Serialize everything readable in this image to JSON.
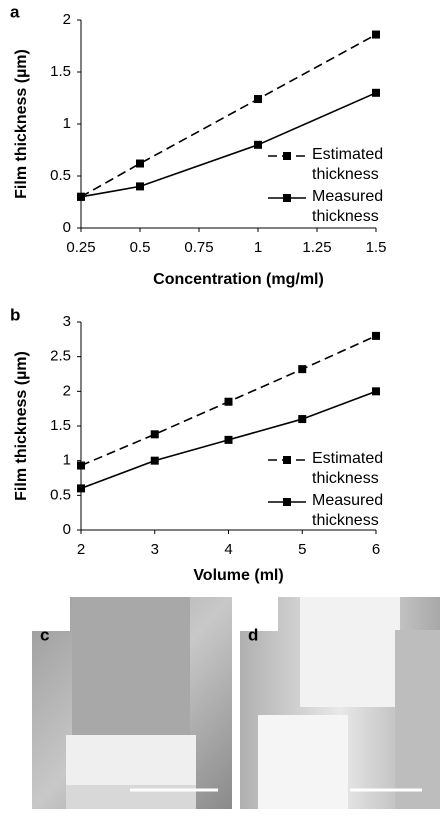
{
  "chart_data": [
    {
      "type": "line",
      "panel_label": "a",
      "xlabel": "Concentration (mg/ml)",
      "ylabel": "Film thickness (µm)",
      "x": [
        0.25,
        0.5,
        1,
        1.5
      ],
      "series": [
        {
          "name": "Estimated thickness",
          "color": "#000000",
          "dash": true,
          "values": [
            0.3,
            0.62,
            1.24,
            1.86
          ]
        },
        {
          "name": "Measured thickness",
          "color": "#000000",
          "dash": false,
          "values": [
            0.3,
            0.4,
            0.8,
            1.3
          ]
        }
      ],
      "xlim": [
        0.25,
        1.5
      ],
      "xticks": [
        0.25,
        0.5,
        0.75,
        1,
        1.25,
        1.5
      ],
      "ylim": [
        0,
        2
      ],
      "yticks": [
        0,
        0.5,
        1,
        1.5,
        2
      ],
      "legend": "lower right"
    },
    {
      "type": "line",
      "panel_label": "b",
      "xlabel": "Volume (ml)",
      "ylabel": "Film thickness (µm)",
      "x": [
        2,
        3,
        4,
        5,
        6
      ],
      "series": [
        {
          "name": "Estimated thickness",
          "color": "#000000",
          "dash": true,
          "values": [
            0.93,
            1.38,
            1.85,
            2.32,
            2.8
          ]
        },
        {
          "name": "Measured thickness",
          "color": "#000000",
          "dash": false,
          "values": [
            0.6,
            1.0,
            1.3,
            1.6,
            2.0
          ]
        }
      ],
      "xlim": [
        2,
        6
      ],
      "xticks": [
        2,
        3,
        4,
        5,
        6
      ],
      "ylim": [
        0,
        3
      ],
      "yticks": [
        0,
        0.5,
        1,
        1.5,
        2,
        2.5,
        3
      ],
      "legend": "lower right"
    }
  ],
  "images": [
    {
      "label": "c"
    },
    {
      "label": "d"
    }
  ]
}
